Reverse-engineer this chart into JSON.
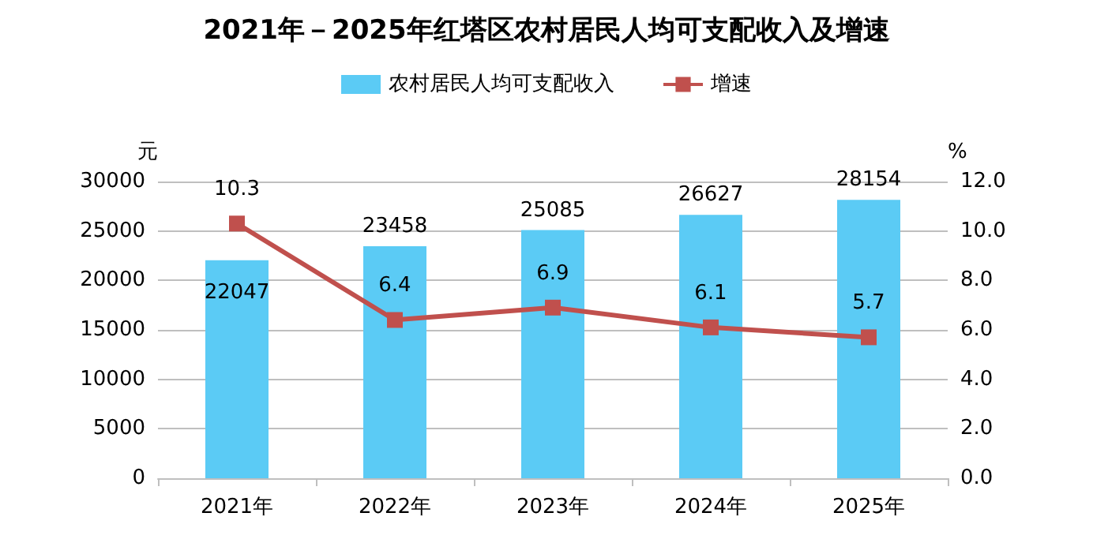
{
  "chart_data": {
    "type": "bar",
    "title": "2021年－2025年红塔区农村居民人均可支配收入及增速",
    "ylabel": "元",
    "y2label": "%",
    "categories": [
      "2021年",
      "2022年",
      "2023年",
      "2024年",
      "2025年"
    ],
    "series": [
      {
        "name": "农村居民人均可支配收入",
        "color": "#5bcbf5",
        "values": [
          22047,
          23458,
          25085,
          26627,
          28154
        ]
      },
      {
        "name": "增速",
        "type": "line",
        "axis": "y2",
        "color": "#c0504d",
        "values": [
          10.3,
          6.4,
          6.9,
          6.1,
          5.7
        ],
        "marker": "square",
        "line_style": "solid"
      }
    ],
    "ylim": [
      0,
      30000
    ],
    "yticks": [
      0,
      5000,
      10000,
      15000,
      20000,
      25000,
      30000
    ],
    "y2lim": [
      0,
      12
    ],
    "y2ticks": [
      {
        "value": 0,
        "label": "0.0"
      },
      {
        "value": 2,
        "label": "2.0"
      },
      {
        "value": 4,
        "label": "4.0"
      },
      {
        "value": 6,
        "label": "6.0"
      },
      {
        "value": 8,
        "label": "8.0"
      },
      {
        "value": 10,
        "label": "10.0"
      },
      {
        "value": 12,
        "label": "12.0"
      }
    ],
    "data_labels": true,
    "grid": "y",
    "legend": "top"
  }
}
